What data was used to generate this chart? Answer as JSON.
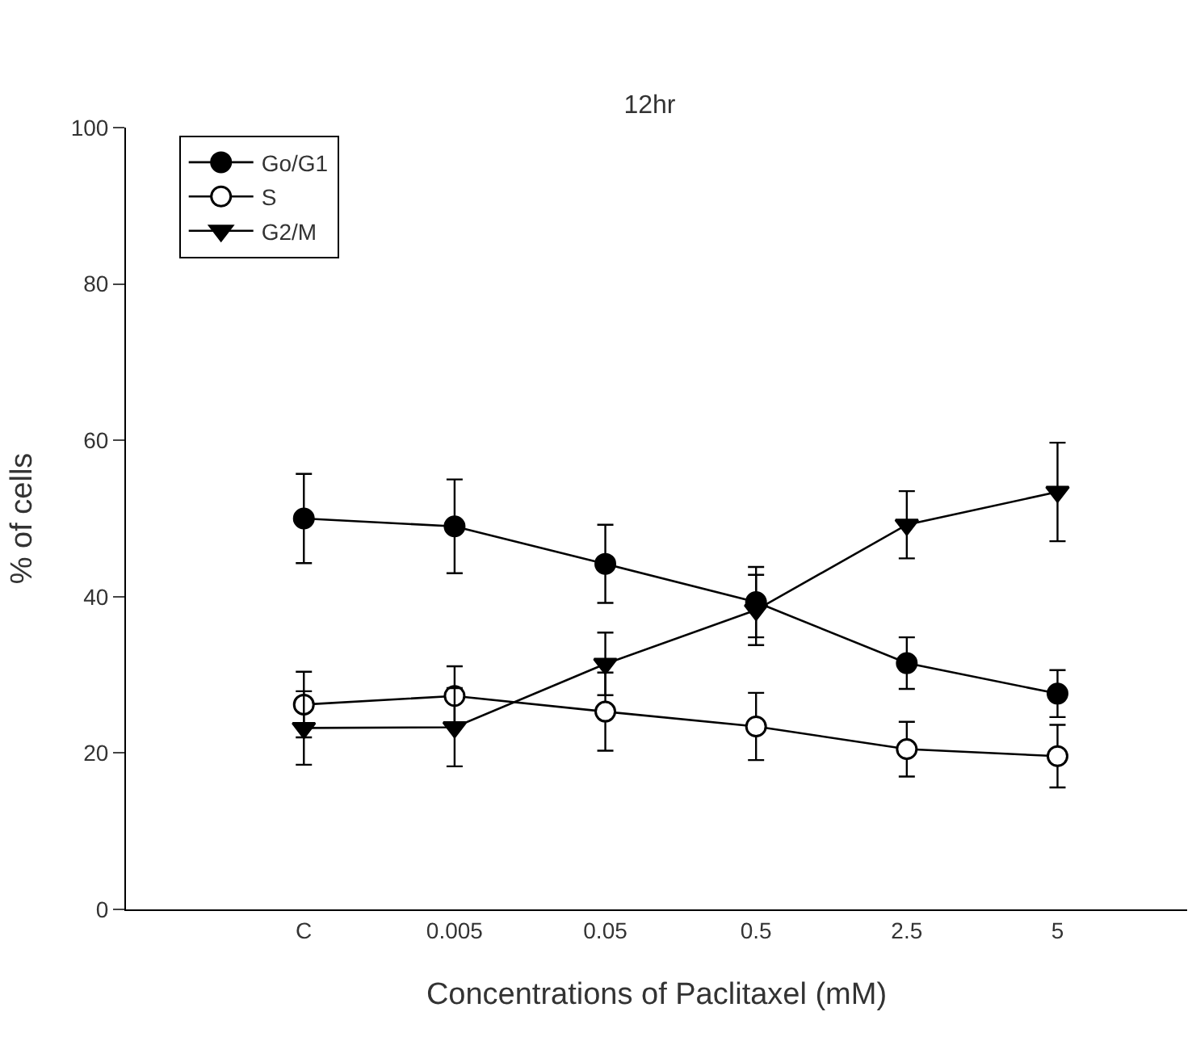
{
  "chart_data": {
    "type": "line",
    "title": "12hr",
    "xlabel": "Concentrations of Paclitaxel (mM)",
    "ylabel": "% of cells",
    "categories": [
      "C",
      "0.005",
      "0.05",
      "0.5",
      "2.5",
      "5"
    ],
    "series": [
      {
        "name": "Go/G1",
        "color": "#000000",
        "marker": "circle",
        "values": [
          50,
          49,
          44.2,
          39.3,
          31.5,
          27.6
        ],
        "errors": [
          5.7,
          6,
          5,
          4.5,
          3.3,
          3
        ]
      },
      {
        "name": "S",
        "color": "#000000",
        "marker": "circle",
        "colors": [
          "#ffffff",
          "#ffffff",
          "#ffffff",
          "#ffffff",
          "#ffffff",
          "#ffffff"
        ],
        "values": [
          26.2,
          27.3,
          25.3,
          23.4,
          20.5,
          19.6
        ],
        "errors": [
          4.2,
          3.8,
          5,
          4.3,
          3.5,
          4
        ]
      },
      {
        "name": "G2/M",
        "color": "#000000",
        "marker": "triangle",
        "values": [
          23.2,
          23.3,
          31.4,
          38.3,
          49.2,
          53.4
        ],
        "errors": [
          4.7,
          5,
          4,
          4.5,
          4.3,
          6.3
        ]
      }
    ],
    "ylim": [
      0,
      100
    ],
    "yticks": [
      0,
      20,
      40,
      60,
      80,
      100
    ],
    "legend": "top left",
    "line_style": "solid"
  }
}
